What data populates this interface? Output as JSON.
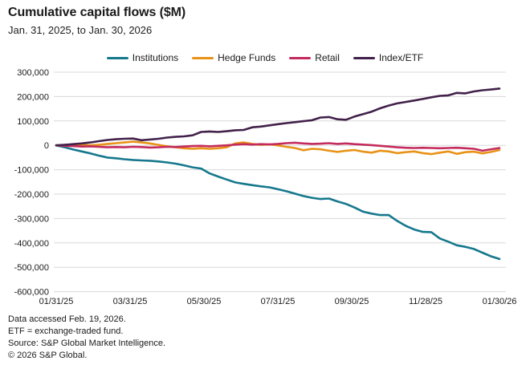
{
  "header": {
    "title": "Cumulative capital flows ($M)",
    "subtitle": "Jan. 31, 2025, to Jan. 30, 2026"
  },
  "chart_data": {
    "type": "line",
    "title": "Cumulative capital flows ($M)",
    "subtitle": "Jan. 31, 2025, to Jan. 30, 2026",
    "xlabel": "",
    "ylabel": "",
    "ylim": [
      -600000,
      300000
    ],
    "y_tick_step": 100000,
    "grid": "horizontal",
    "legend_position": "top",
    "x_tick_labels": [
      "01/31/25",
      "03/31/25",
      "05/30/25",
      "07/31/25",
      "09/30/25",
      "11/28/25",
      "01/30/26"
    ],
    "y_tick_labels": [
      "300,000",
      "200,000",
      "100,000",
      "0",
      "-100,000",
      "-200,000",
      "-300,000",
      "-400,000",
      "-500,000",
      "-600,000"
    ],
    "series": [
      {
        "name": "Institutions",
        "color": "#16788D",
        "values": [
          0,
          -8000,
          -17000,
          -25000,
          -33000,
          -42000,
          -50000,
          -53000,
          -57000,
          -60000,
          -62000,
          -63000,
          -66000,
          -70000,
          -75000,
          -82000,
          -90000,
          -95000,
          -115000,
          -128000,
          -140000,
          -152000,
          -158000,
          -163000,
          -168000,
          -172000,
          -180000,
          -188000,
          -198000,
          -208000,
          -215000,
          -220000,
          -218000,
          -230000,
          -240000,
          -255000,
          -272000,
          -280000,
          -286000,
          -286000,
          -310000,
          -330000,
          -345000,
          -355000,
          -356000,
          -382000,
          -395000,
          -410000,
          -416000,
          -425000,
          -440000,
          -455000,
          -466000
        ]
      },
      {
        "name": "Hedge Funds",
        "color": "#E89217",
        "values": [
          0,
          2000,
          4000,
          2000,
          0,
          2000,
          6000,
          9000,
          12000,
          15000,
          12000,
          8000,
          2000,
          -4000,
          -8000,
          -12000,
          -14000,
          -12000,
          -14000,
          -12000,
          -8000,
          8000,
          12000,
          6000,
          2000,
          4000,
          0,
          -6000,
          -11000,
          -20000,
          -14000,
          -16000,
          -22000,
          -27000,
          -22000,
          -19000,
          -26000,
          -30000,
          -22000,
          -25000,
          -32000,
          -28000,
          -25000,
          -32000,
          -36000,
          -30000,
          -25000,
          -35000,
          -28000,
          -26000,
          -33000,
          -27000,
          -19000
        ]
      },
      {
        "name": "Retail",
        "color": "#C42B5D",
        "values": [
          0,
          -2000,
          -3000,
          -5000,
          -4000,
          -6000,
          -8000,
          -7000,
          -8000,
          -6000,
          -7000,
          -9000,
          -8000,
          -6000,
          -7000,
          -5000,
          -3000,
          -2000,
          -4000,
          -2000,
          0,
          3000,
          5000,
          3000,
          5000,
          4000,
          6000,
          9000,
          11000,
          8000,
          6000,
          7000,
          9000,
          6000,
          8000,
          5000,
          3000,
          1000,
          -2000,
          -5000,
          -8000,
          -10000,
          -11000,
          -10000,
          -11000,
          -12000,
          -11000,
          -10000,
          -12000,
          -14000,
          -22000,
          -16000,
          -11000
        ]
      },
      {
        "name": "Index/ETF",
        "color": "#42214A",
        "values": [
          0,
          2000,
          5000,
          8000,
          12000,
          17000,
          22000,
          25000,
          27000,
          28000,
          21000,
          24000,
          27000,
          32000,
          35000,
          37000,
          41000,
          55000,
          57000,
          55000,
          58000,
          62000,
          63000,
          74000,
          77000,
          82000,
          87000,
          91000,
          95000,
          99000,
          103000,
          114000,
          116000,
          107000,
          105000,
          118000,
          128000,
          138000,
          152000,
          163000,
          172000,
          178000,
          184000,
          190000,
          197000,
          203000,
          205000,
          215000,
          213000,
          221000,
          226000,
          229000,
          233000
        ]
      }
    ],
    "footnotes": [
      "Data accessed Feb. 19, 2026.",
      "ETF = exchange-traded fund.",
      "Source: S&P Global Market Intelligence.",
      "© 2026 S&P Global."
    ]
  },
  "style": {
    "gridline_color": "#d8d8d8",
    "text_color": "#1a1a1a"
  }
}
